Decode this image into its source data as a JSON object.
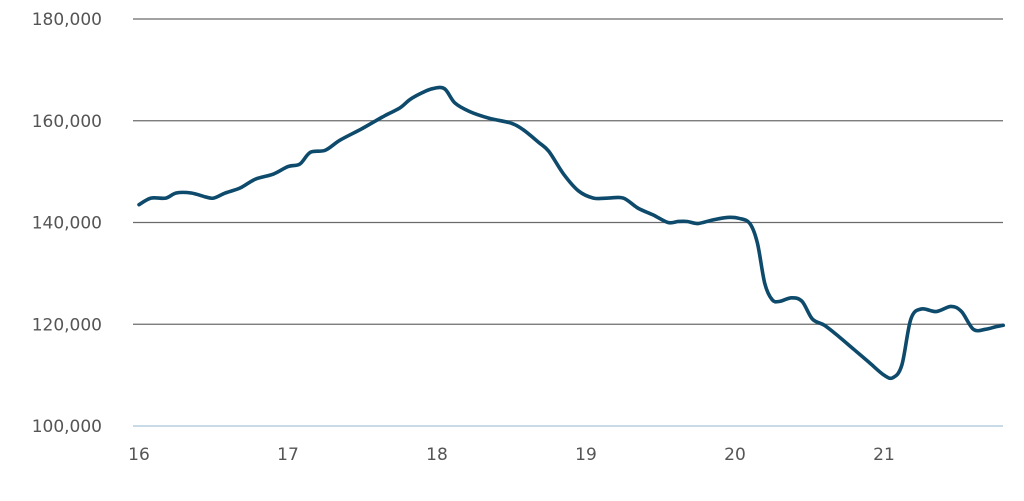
{
  "chart_data": {
    "type": "line",
    "title": "",
    "xlabel": "",
    "ylabel": "",
    "xlim": [
      16,
      21.8
    ],
    "ylim": [
      100000,
      180000
    ],
    "x_ticks": [
      "16",
      "17",
      "18",
      "19",
      "20",
      "21"
    ],
    "x_tick_values": [
      16,
      17,
      18,
      19,
      20,
      21
    ],
    "y_ticks": [
      "100,000",
      "120,000",
      "140,000",
      "160,000",
      "180,000"
    ],
    "y_tick_values": [
      100000,
      120000,
      140000,
      160000,
      180000
    ],
    "grid": true,
    "legend": "none",
    "series": [
      {
        "color": "#0d4a6b",
        "x": [
          16.0,
          16.08,
          16.18,
          16.25,
          16.35,
          16.45,
          16.5,
          16.58,
          16.68,
          16.78,
          16.9,
          17.0,
          17.08,
          17.15,
          17.25,
          17.35,
          17.5,
          17.65,
          17.75,
          17.82,
          17.9,
          17.97,
          18.05,
          18.12,
          18.22,
          18.35,
          18.5,
          18.58,
          18.68,
          18.75,
          18.85,
          18.95,
          19.05,
          19.15,
          19.25,
          19.35,
          19.45,
          19.55,
          19.62,
          19.68,
          19.75,
          19.85,
          19.95,
          20.03,
          20.1,
          20.15,
          20.2,
          20.25,
          20.3,
          20.38,
          20.45,
          20.52,
          20.6,
          20.7,
          20.8,
          20.9,
          21.0,
          21.06,
          21.12,
          21.18,
          21.25,
          21.35,
          21.45,
          21.52,
          21.6,
          21.68,
          21.75,
          21.8
        ],
        "values": [
          143500,
          144800,
          144800,
          145800,
          145800,
          145000,
          144800,
          145800,
          146800,
          148500,
          149500,
          151000,
          151500,
          153800,
          154200,
          156200,
          158500,
          161000,
          162500,
          164200,
          165500,
          166300,
          166300,
          163500,
          161800,
          160500,
          159500,
          158200,
          155800,
          154000,
          149500,
          146200,
          144800,
          144800,
          144800,
          142800,
          141500,
          140000,
          140200,
          140200,
          139800,
          140500,
          141000,
          140800,
          139800,
          136000,
          128000,
          124800,
          124500,
          125200,
          124500,
          121000,
          119800,
          117500,
          115000,
          112500,
          110000,
          109500,
          112000,
          121000,
          123000,
          122500,
          123500,
          122500,
          119000,
          119000,
          119500,
          119800
        ]
      }
    ]
  }
}
